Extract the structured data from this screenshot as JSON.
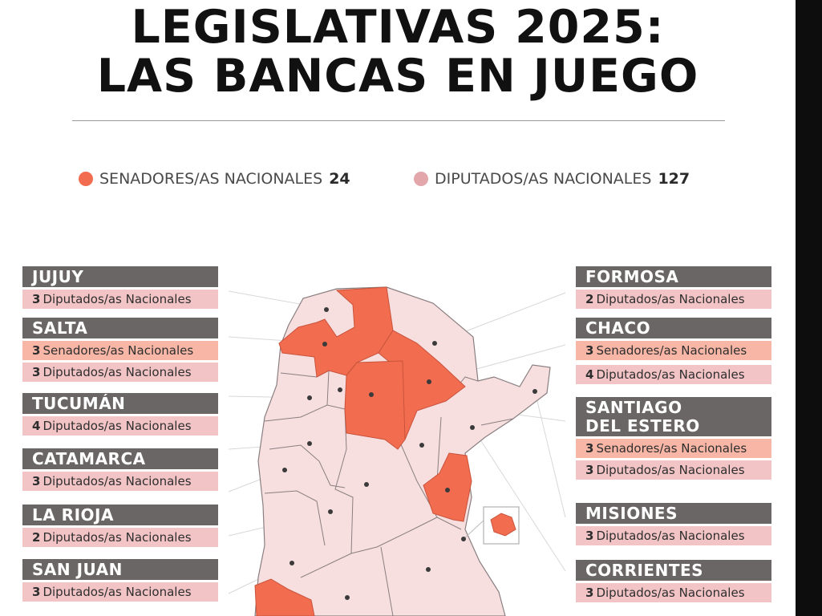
{
  "title_line1": "LEGISLATIVAS 2025:",
  "title_line2": "LAS BANCAS EN JUEGO",
  "colors": {
    "senadores": "#f26d4f",
    "diputados": "#e3a6aa",
    "province_fill": "#f7dfe0",
    "header_bg": "#6b6666"
  },
  "legend": {
    "senadores_label": "SENADORES/AS NACIONALES",
    "senadores_total": "24",
    "diputados_label": "DIPUTADOS/AS NACIONALES",
    "diputados_total": "127"
  },
  "provinces_left": [
    {
      "name": "JUJUY",
      "rows": [
        {
          "type": "dip",
          "count": "3",
          "label": "Diputados/as Nacionales"
        }
      ]
    },
    {
      "name": "SALTA",
      "rows": [
        {
          "type": "sen",
          "count": "3",
          "label": "Senadores/as Nacionales"
        },
        {
          "type": "dip",
          "count": "3",
          "label": "Diputados/as Nacionales"
        }
      ]
    },
    {
      "name": "TUCUMÁN",
      "rows": [
        {
          "type": "dip",
          "count": "4",
          "label": "Diputados/as Nacionales"
        }
      ]
    },
    {
      "name": "CATAMARCA",
      "rows": [
        {
          "type": "dip",
          "count": "3",
          "label": "Diputados/as Nacionales"
        }
      ]
    },
    {
      "name": "LA RIOJA",
      "rows": [
        {
          "type": "dip",
          "count": "2",
          "label": "Diputados/as Nacionales"
        }
      ]
    },
    {
      "name": "SAN JUAN",
      "rows": [
        {
          "type": "dip",
          "count": "3",
          "label": "Diputados/as Nacionales"
        }
      ]
    }
  ],
  "provinces_right": [
    {
      "name": "FORMOSA",
      "rows": [
        {
          "type": "dip",
          "count": "2",
          "label": "Diputados/as Nacionales"
        }
      ]
    },
    {
      "name": "CHACO",
      "rows": [
        {
          "type": "sen",
          "count": "3",
          "label": "Senadores/as Nacionales"
        },
        {
          "type": "dip",
          "count": "4",
          "label": "Diputados/as Nacionales"
        }
      ]
    },
    {
      "name": "SANTIAGO DEL ESTERO",
      "name_line1": "SANTIAGO",
      "name_line2": "DEL ESTERO",
      "rows": [
        {
          "type": "sen",
          "count": "3",
          "label": "Senadores/as Nacionales"
        },
        {
          "type": "dip",
          "count": "3",
          "label": "Diputados/as Nacionales"
        }
      ]
    },
    {
      "name": "MISIONES",
      "rows": [
        {
          "type": "dip",
          "count": "3",
          "label": "Diputados/as Nacionales"
        }
      ]
    },
    {
      "name": "CORRIENTES",
      "rows": [
        {
          "type": "dip",
          "count": "3",
          "label": "Diputados/as Nacionales"
        }
      ]
    }
  ]
}
